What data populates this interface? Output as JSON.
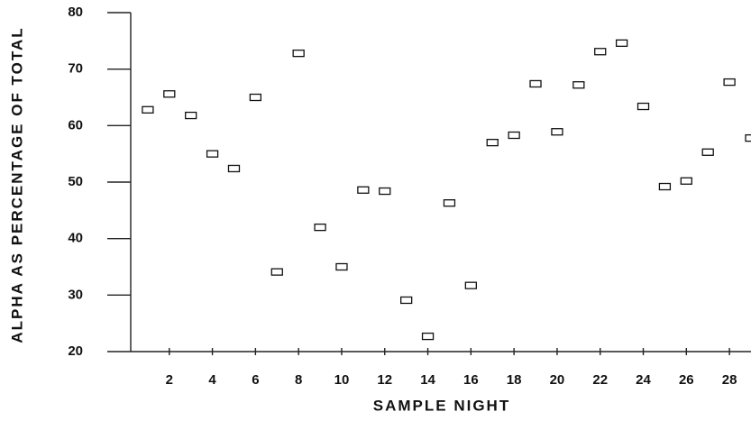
{
  "chart_data": {
    "type": "scatter",
    "x_label": "SAMPLE NIGHT",
    "y_label": "ALPHA AS PERCENTAGE OF TOTAL",
    "x": [
      1,
      2,
      3,
      4,
      5,
      6,
      7,
      8,
      9,
      10,
      11,
      12,
      13,
      14,
      15,
      16,
      17,
      18,
      19,
      20,
      21,
      22,
      23,
      24,
      25,
      26,
      27,
      28,
      29
    ],
    "values": [
      62.8,
      65.6,
      61.8,
      55.0,
      52.4,
      65.0,
      34.1,
      72.8,
      42.0,
      35.0,
      48.6,
      48.4,
      29.1,
      22.7,
      46.3,
      31.7,
      57.0,
      58.3,
      67.4,
      58.9,
      67.2,
      73.1,
      74.6,
      63.4,
      49.2,
      50.2,
      55.3,
      67.7,
      57.8
    ],
    "color": "#111111",
    "xlim": [
      0,
      29
    ],
    "ylim": [
      20,
      80
    ],
    "xticks": [
      2,
      4,
      6,
      8,
      10,
      12,
      14,
      16,
      18,
      20,
      22,
      24,
      26,
      28
    ],
    "yticks": [
      20,
      30,
      40,
      50,
      60,
      70,
      80
    ]
  }
}
